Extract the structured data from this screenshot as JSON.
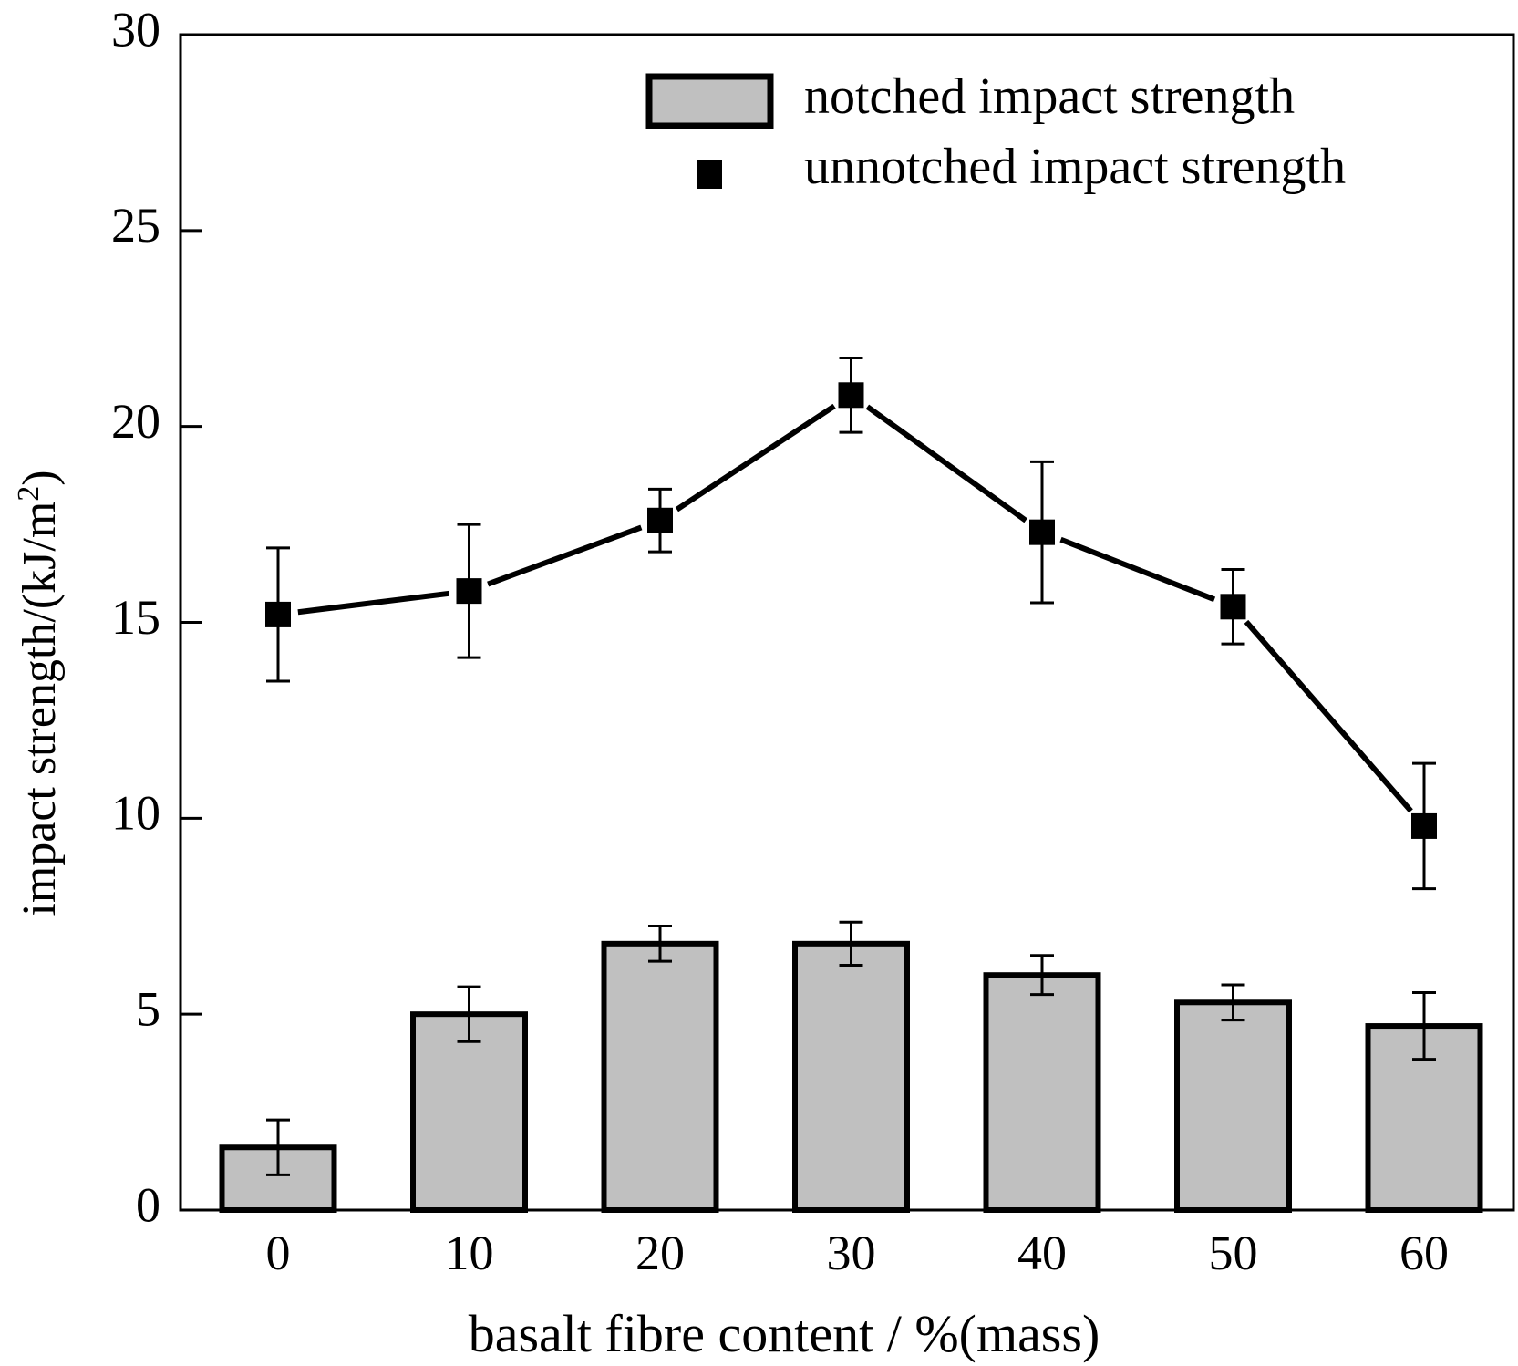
{
  "chart_data": {
    "type": "bar",
    "title": "",
    "xlabel": "basalt fibre content / %(mass)",
    "ylabel": "impact strength/(kJ/m",
    "ylabel_sup": "2",
    "ylabel_close": ")",
    "categories": [
      "0",
      "10",
      "20",
      "30",
      "40",
      "50",
      "60"
    ],
    "ylim": [
      0,
      30
    ],
    "yticks": [
      "0",
      "5",
      "10",
      "15",
      "20",
      "25",
      "30"
    ],
    "grid": false,
    "legend_position": "top-right",
    "series": [
      {
        "name": "notched impact strength",
        "kind": "bar",
        "color": "#c0c0c0",
        "values": [
          1.6,
          5.0,
          6.8,
          6.8,
          6.0,
          5.3,
          4.7
        ],
        "errors": [
          0.7,
          0.7,
          0.45,
          0.55,
          0.5,
          0.45,
          0.85
        ]
      },
      {
        "name": "unnotched impact strength",
        "kind": "line-marker",
        "color": "#000000",
        "marker": "square",
        "values": [
          15.2,
          15.8,
          17.6,
          20.8,
          17.3,
          15.4,
          9.8
        ],
        "errors": [
          1.7,
          1.7,
          0.8,
          0.95,
          1.8,
          0.95,
          1.6
        ]
      }
    ]
  }
}
